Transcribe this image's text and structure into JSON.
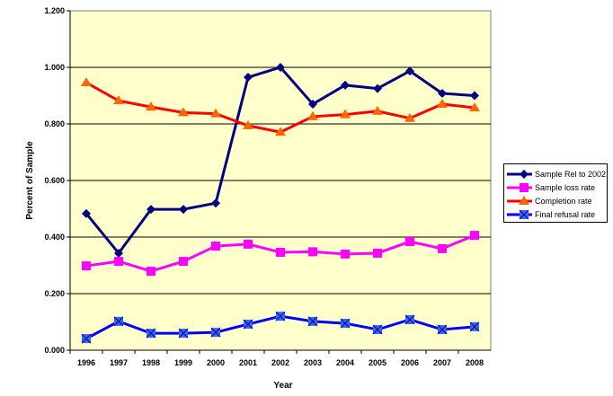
{
  "chart_data": {
    "type": "line",
    "title": "",
    "xlabel": "Year",
    "ylabel": "Percent of Sample",
    "x": [
      "1996",
      "1997",
      "1998",
      "1999",
      "2000",
      "2001",
      "2002",
      "2003",
      "2004",
      "2005",
      "2006",
      "2007",
      "2008"
    ],
    "ylim": [
      0,
      1.2
    ],
    "yticks": [
      "0.000",
      "0.200",
      "0.400",
      "0.600",
      "0.800",
      "1.000",
      "1.200"
    ],
    "grid": "horizontal",
    "legend_position": "right",
    "plot_background": "#FFFFCC",
    "series": [
      {
        "name": "Sample Rel to 2002",
        "color": "#000080",
        "marker": "diamond",
        "values": [
          0.483,
          0.343,
          0.498,
          0.498,
          0.52,
          0.965,
          1.0,
          0.87,
          0.937,
          0.925,
          0.987,
          0.908,
          0.9
        ]
      },
      {
        "name": "Sample loss rate",
        "color": "#FF00FF",
        "marker": "square",
        "values": [
          0.298,
          0.314,
          0.279,
          0.314,
          0.368,
          0.375,
          0.346,
          0.348,
          0.34,
          0.343,
          0.384,
          0.359,
          0.406
        ]
      },
      {
        "name": "Completion rate",
        "color": "#FF0000",
        "marker_color": "#FF6600",
        "marker": "triangle",
        "values": [
          0.946,
          0.882,
          0.86,
          0.84,
          0.836,
          0.794,
          0.771,
          0.826,
          0.833,
          0.845,
          0.82,
          0.87,
          0.857
        ]
      },
      {
        "name": "Final refusal rate",
        "color": "#0000FF",
        "marker_color": "#3366FF",
        "marker": "x-square",
        "values": [
          0.041,
          0.102,
          0.06,
          0.06,
          0.063,
          0.092,
          0.12,
          0.102,
          0.095,
          0.073,
          0.108,
          0.073,
          0.083
        ]
      }
    ]
  }
}
